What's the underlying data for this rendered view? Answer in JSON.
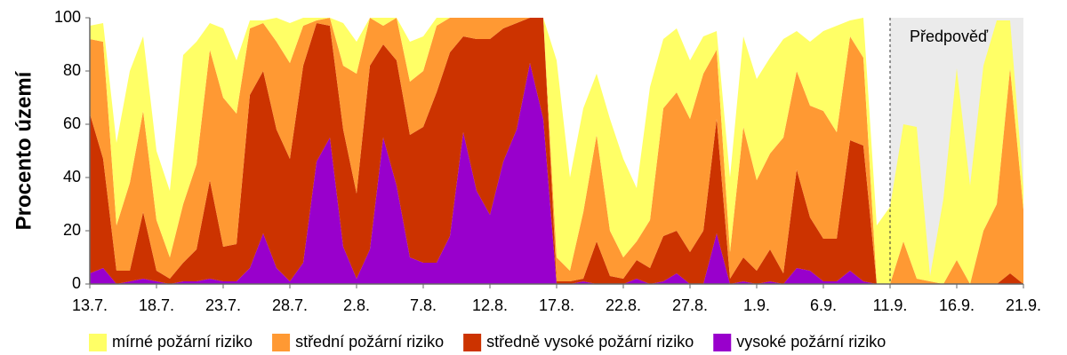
{
  "chart_data": {
    "type": "stacked-area",
    "y_label": "Procento území",
    "categories": [
      "13.7.",
      null,
      null,
      null,
      null,
      "18.7.",
      null,
      null,
      null,
      null,
      "23.7.",
      null,
      null,
      null,
      null,
      "28.7.",
      null,
      null,
      null,
      null,
      "2.8.",
      null,
      null,
      null,
      null,
      "7.8.",
      null,
      null,
      null,
      null,
      "12.8.",
      null,
      null,
      null,
      null,
      "17.8.",
      null,
      null,
      null,
      null,
      "22.8.",
      null,
      null,
      null,
      null,
      "27.8.",
      null,
      null,
      null,
      null,
      "1.9.",
      null,
      null,
      null,
      null,
      "6.9.",
      null,
      null,
      null,
      null,
      "11.9.",
      null,
      null,
      null,
      null,
      "16.9.",
      null,
      null,
      null,
      null,
      "21.9."
    ],
    "series": [
      {
        "name": "mírné požární riziko",
        "color": "#ffff66",
        "values": [
          5,
          7,
          31,
          42,
          28,
          26,
          25,
          56,
          46,
          10,
          26,
          20,
          3,
          1,
          9,
          15,
          3,
          1,
          0,
          16,
          12,
          0,
          3,
          0,
          15,
          13,
          3,
          0,
          0,
          0,
          0,
          0,
          0,
          0,
          0,
          74,
          35,
          39,
          23,
          42,
          37,
          20,
          50,
          26,
          24,
          22,
          14,
          7,
          28,
          34,
          38,
          36,
          37,
          15,
          24,
          30,
          40,
          6,
          15,
          22,
          29,
          44,
          57,
          2,
          32,
          72,
          37,
          62,
          69,
          18,
          8
        ]
      },
      {
        "name": "střední požární riziko",
        "color": "#ff9933",
        "values": [
          28,
          44,
          17,
          33,
          38,
          19,
          8,
          22,
          32,
          49,
          56,
          49,
          25,
          18,
          33,
          36,
          15,
          1,
          3,
          24,
          45,
          18,
          7,
          16,
          20,
          21,
          25,
          13,
          7,
          8,
          8,
          4,
          2,
          0,
          0,
          9,
          4,
          25,
          40,
          17,
          8,
          7,
          18,
          48,
          52,
          50,
          59,
          26,
          10,
          49,
          34,
          36,
          51,
          37,
          42,
          48,
          40,
          39,
          33,
          0,
          0,
          16,
          2,
          1,
          0,
          9,
          0,
          20,
          30,
          77,
          28
        ]
      },
      {
        "name": "středně vysoké požární riziko",
        "color": "#cc3300",
        "values": [
          60,
          41,
          5,
          4,
          25,
          4,
          2,
          7,
          12,
          37,
          13,
          14,
          65,
          61,
          52,
          46,
          74,
          52,
          42,
          44,
          32,
          69,
          35,
          47,
          46,
          51,
          64,
          69,
          36,
          57,
          66,
          50,
          40,
          17,
          38,
          1,
          1,
          1,
          16,
          3,
          2,
          7,
          6,
          17,
          16,
          12,
          20,
          43,
          2,
          9,
          5,
          12,
          4,
          37,
          20,
          16,
          16,
          49,
          51,
          0,
          0,
          0,
          0,
          0,
          0,
          0,
          0,
          0,
          0,
          4,
          0
        ]
      },
      {
        "name": "vysoké požární riziko",
        "color": "#9900cc",
        "values": [
          4,
          6,
          0,
          1,
          2,
          1,
          0,
          1,
          1,
          2,
          1,
          1,
          6,
          19,
          6,
          1,
          8,
          46,
          55,
          14,
          2,
          13,
          55,
          37,
          10,
          8,
          8,
          18,
          57,
          35,
          26,
          46,
          58,
          83,
          62,
          0,
          0,
          1,
          0,
          0,
          0,
          2,
          0,
          1,
          4,
          0,
          0,
          19,
          0,
          1,
          0,
          1,
          0,
          6,
          5,
          1,
          1,
          5,
          1,
          0,
          0,
          0,
          0,
          0,
          0,
          0,
          0,
          0,
          0,
          0,
          0
        ]
      }
    ],
    "ylim": [
      0,
      100
    ],
    "yticks": [
      0,
      20,
      40,
      60,
      80,
      100
    ],
    "forecast": {
      "label": "Předpověď",
      "start": "11.9.",
      "color": "#ebebeb"
    },
    "legend": "bottom"
  }
}
